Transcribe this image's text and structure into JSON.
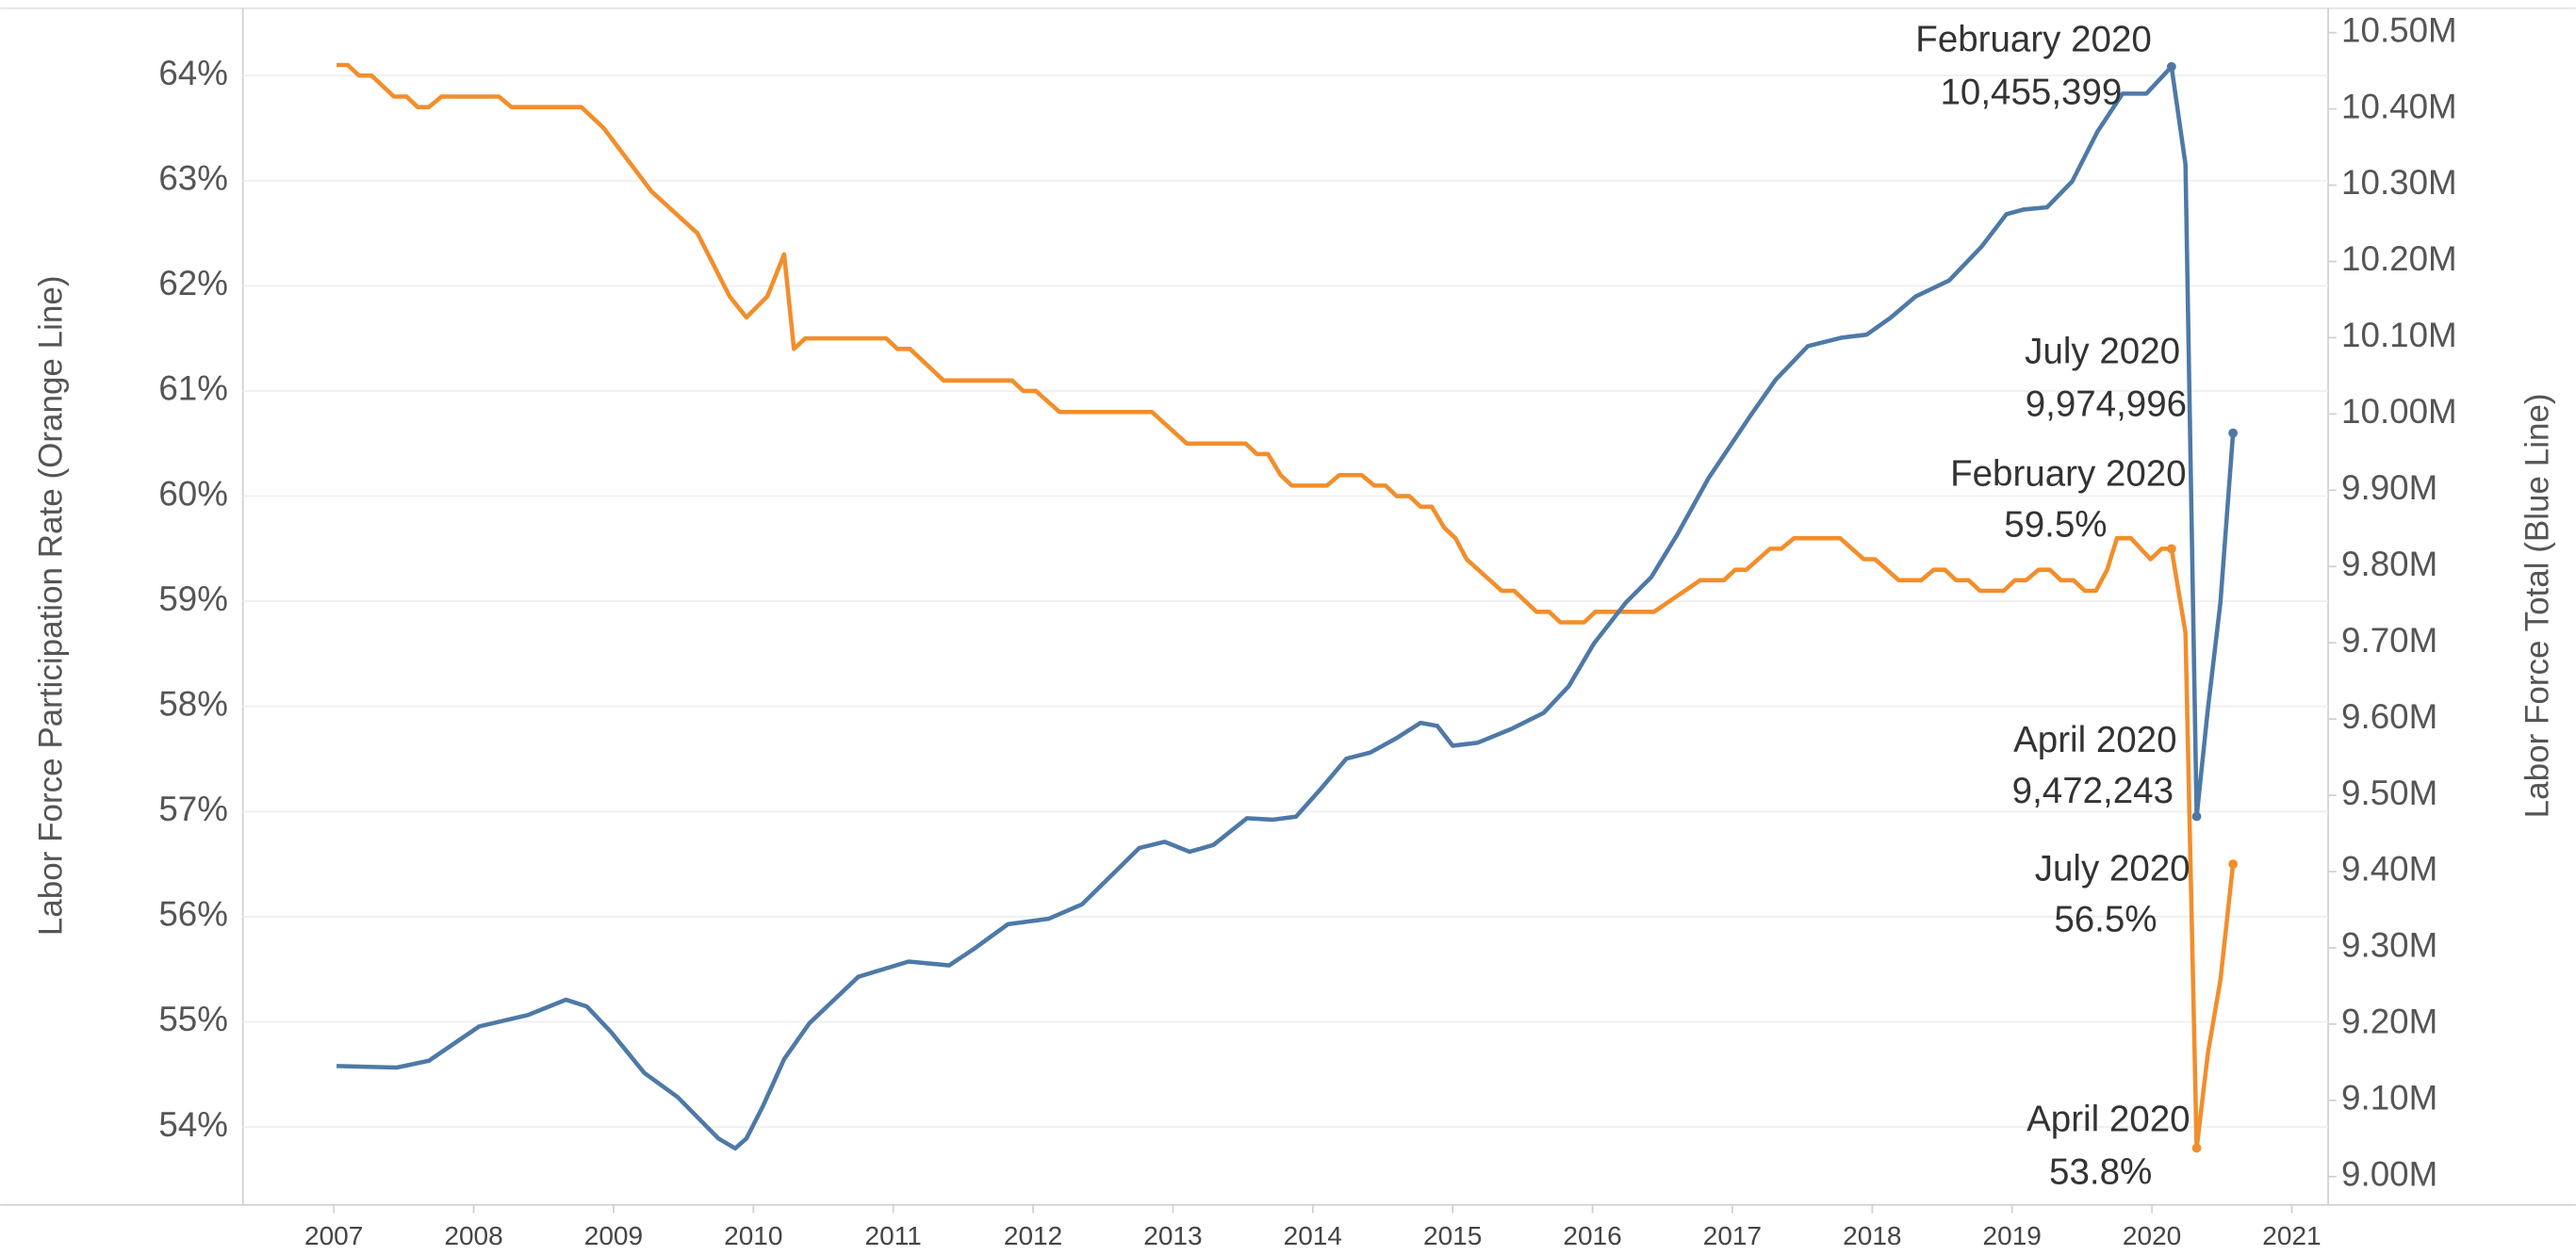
{
  "chart_data": {
    "type": "line",
    "ylabel": "Labor Force Participation Rate (Orange Line)",
    "y2label": "Labor Force Total (Blue Line)",
    "xlim": [
      2006.35,
      2021.26
    ],
    "xticks": [
      2007,
      2008,
      2009,
      2010,
      2011,
      2012,
      2013,
      2014,
      2015,
      2016,
      2017,
      2018,
      2019,
      2020,
      2021
    ],
    "ylim": [
      53.26,
      64.64
    ],
    "yticks": [
      {
        "value": 54,
        "label": "54%"
      },
      {
        "value": 55,
        "label": "55%"
      },
      {
        "value": 56,
        "label": "56%"
      },
      {
        "value": 57,
        "label": "57%"
      },
      {
        "value": 58,
        "label": "58%"
      },
      {
        "value": 59,
        "label": "59%"
      },
      {
        "value": 60,
        "label": "60%"
      },
      {
        "value": 61,
        "label": "61%"
      },
      {
        "value": 62,
        "label": "62%"
      },
      {
        "value": 63,
        "label": "63%"
      },
      {
        "value": 64,
        "label": "64%"
      }
    ],
    "y2lim": [
      8963000,
      10532000
    ],
    "y2ticks": [
      {
        "value": 9000000,
        "label": "9.00M"
      },
      {
        "value": 9100000,
        "label": "9.10M"
      },
      {
        "value": 9200000,
        "label": "9.20M"
      },
      {
        "value": 9300000,
        "label": "9.30M"
      },
      {
        "value": 9400000,
        "label": "9.40M"
      },
      {
        "value": 9500000,
        "label": "9.50M"
      },
      {
        "value": 9600000,
        "label": "9.60M"
      },
      {
        "value": 9700000,
        "label": "9.70M"
      },
      {
        "value": 9800000,
        "label": "9.80M"
      },
      {
        "value": 9900000,
        "label": "9.90M"
      },
      {
        "value": 10000000,
        "label": "10.00M"
      },
      {
        "value": 10100000,
        "label": "10.10M"
      },
      {
        "value": 10200000,
        "label": "10.20M"
      },
      {
        "value": 10300000,
        "label": "10.30M"
      },
      {
        "value": 10400000,
        "label": "10.40M"
      },
      {
        "value": 10500000,
        "label": "10.50M"
      }
    ],
    "grid": true,
    "series": [
      {
        "name": "Labor Force Participation Rate",
        "color": "#f28e2b",
        "axis": "y",
        "x": [
          2007.02,
          2007.1,
          2007.18,
          2007.27,
          2007.43,
          2007.52,
          2007.6,
          2007.68,
          2007.77,
          2008.18,
          2008.27,
          2008.77,
          2008.93,
          2009.1,
          2009.27,
          2009.6,
          2009.83,
          2009.95,
          2010.1,
          2010.22,
          2010.29,
          2010.37,
          2010.95,
          2011.03,
          2011.12,
          2011.36,
          2011.85,
          2011.93,
          2012.02,
          2012.19,
          2012.85,
          2013.1,
          2013.52,
          2013.6,
          2013.68,
          2013.77,
          2013.85,
          2014.1,
          2014.19,
          2014.35,
          2014.44,
          2014.52,
          2014.6,
          2014.69,
          2014.77,
          2014.85,
          2014.94,
          2015.02,
          2015.1,
          2015.35,
          2015.44,
          2015.6,
          2015.69,
          2015.77,
          2015.94,
          2016.02,
          2016.44,
          2016.77,
          2016.94,
          2017.02,
          2017.1,
          2017.27,
          2017.35,
          2017.44,
          2017.77,
          2017.94,
          2018.02,
          2018.19,
          2018.35,
          2018.44,
          2018.52,
          2018.6,
          2018.69,
          2018.77,
          2018.94,
          2019.02,
          2019.1,
          2019.19,
          2019.27,
          2019.35,
          2019.44,
          2019.52,
          2019.6,
          2019.68,
          2019.75,
          2019.85,
          2019.99,
          2020.07,
          2020.14,
          2020.24,
          2020.32,
          2020.4,
          2020.49,
          2020.58
        ],
        "values": [
          64.1,
          64.1,
          64.0,
          64.0,
          63.8,
          63.8,
          63.7,
          63.7,
          63.8,
          63.8,
          63.7,
          63.7,
          63.5,
          63.2,
          62.9,
          62.5,
          61.9,
          61.7,
          61.9,
          62.3,
          61.4,
          61.5,
          61.5,
          61.4,
          61.4,
          61.1,
          61.1,
          61.0,
          61.0,
          60.8,
          60.8,
          60.5,
          60.5,
          60.4,
          60.4,
          60.2,
          60.1,
          60.1,
          60.2,
          60.2,
          60.1,
          60.1,
          60.0,
          60.0,
          59.9,
          59.9,
          59.7,
          59.6,
          59.4,
          59.1,
          59.1,
          58.9,
          58.9,
          58.8,
          58.8,
          58.9,
          58.9,
          59.2,
          59.2,
          59.3,
          59.3,
          59.5,
          59.5,
          59.6,
          59.6,
          59.4,
          59.4,
          59.2,
          59.2,
          59.3,
          59.3,
          59.2,
          59.2,
          59.1,
          59.1,
          59.2,
          59.2,
          59.3,
          59.3,
          59.2,
          59.2,
          59.1,
          59.1,
          59.3,
          59.6,
          59.6,
          59.4,
          59.5,
          59.5,
          58.7,
          53.8,
          54.7,
          55.4,
          56.5
        ],
        "point_labels": [
          null,
          null,
          null,
          null,
          null,
          null,
          null,
          null,
          null,
          null,
          null,
          null,
          null,
          null,
          null,
          null,
          null,
          null,
          null,
          null,
          null,
          null,
          null,
          null,
          null,
          null,
          null,
          null,
          null,
          null,
          null,
          null,
          null,
          null,
          null,
          null,
          null,
          null,
          null,
          null,
          null,
          null,
          null,
          null,
          null,
          null,
          null,
          null,
          null,
          null,
          null,
          null,
          null,
          null,
          null,
          null,
          null,
          null,
          null,
          null,
          null,
          null,
          null,
          null,
          null,
          null,
          null,
          null,
          null,
          null,
          null,
          null,
          null,
          null,
          null,
          null,
          null,
          null,
          null,
          null,
          null,
          null,
          null,
          null,
          null,
          null,
          null,
          null,
          "February 2020",
          null,
          "April 2020",
          null,
          null,
          "July 2020"
        ],
        "value_labels": [
          null,
          null,
          null,
          null,
          null,
          null,
          null,
          null,
          null,
          null,
          null,
          null,
          null,
          null,
          null,
          null,
          null,
          null,
          null,
          null,
          null,
          null,
          null,
          null,
          null,
          null,
          null,
          null,
          null,
          null,
          null,
          null,
          null,
          null,
          null,
          null,
          null,
          null,
          null,
          null,
          null,
          null,
          null,
          null,
          null,
          null,
          null,
          null,
          null,
          null,
          null,
          null,
          null,
          null,
          null,
          null,
          null,
          null,
          null,
          null,
          null,
          null,
          null,
          null,
          null,
          null,
          null,
          null,
          null,
          null,
          null,
          null,
          null,
          null,
          null,
          null,
          null,
          null,
          null,
          null,
          null,
          null,
          null,
          null,
          null,
          null,
          null,
          null,
          "59.5%",
          null,
          "53.8%",
          null,
          null,
          "56.5%"
        ]
      },
      {
        "name": "Labor Force Total",
        "color": "#4e79a7",
        "axis": "y2",
        "x": [
          2007.02,
          2007.45,
          2007.68,
          2008.04,
          2008.39,
          2008.66,
          2008.81,
          2008.98,
          2009.22,
          2009.46,
          2009.75,
          2009.87,
          2009.95,
          2010.07,
          2010.22,
          2010.4,
          2010.75,
          2011.11,
          2011.4,
          2011.58,
          2011.82,
          2012.11,
          2012.35,
          2012.76,
          2012.94,
          2013.12,
          2013.29,
          2013.53,
          2013.71,
          2013.88,
          2014.06,
          2014.24,
          2014.41,
          2014.59,
          2014.77,
          2014.89,
          2015.0,
          2015.18,
          2015.42,
          2015.65,
          2015.83,
          2016.01,
          2016.24,
          2016.42,
          2016.6,
          2016.83,
          2017.13,
          2017.31,
          2017.54,
          2017.78,
          2017.96,
          2018.13,
          2018.31,
          2018.55,
          2018.78,
          2018.96,
          2019.08,
          2019.25,
          2019.43,
          2019.61,
          2019.79,
          2019.96,
          2020.14,
          2020.24,
          2020.32,
          2020.4,
          2020.49,
          2020.58
        ],
        "values": [
          9145000,
          9143000,
          9152000,
          9197000,
          9212000,
          9232000,
          9223000,
          9190000,
          9136000,
          9104000,
          9050000,
          9037000,
          9050000,
          9093000,
          9154000,
          9201000,
          9262000,
          9282000,
          9277000,
          9299000,
          9331000,
          9338000,
          9357000,
          9431000,
          9439000,
          9426000,
          9435000,
          9470000,
          9468000,
          9472000,
          9509000,
          9548000,
          9556000,
          9574000,
          9595000,
          9591000,
          9565000,
          9569000,
          9587000,
          9608000,
          9643000,
          9699000,
          9753000,
          9786000,
          9840000,
          9916000,
          9998000,
          10045000,
          10089000,
          10100000,
          10104000,
          10126000,
          10154000,
          10175000,
          10219000,
          10262000,
          10268000,
          10271000,
          10305000,
          10370000,
          10420000,
          10420000,
          10455399,
          10327000,
          9472243,
          9613000,
          9753000,
          9974996
        ],
        "point_labels": [
          null,
          null,
          null,
          null,
          null,
          null,
          null,
          null,
          null,
          null,
          null,
          null,
          null,
          null,
          null,
          null,
          null,
          null,
          null,
          null,
          null,
          null,
          null,
          null,
          null,
          null,
          null,
          null,
          null,
          null,
          null,
          null,
          null,
          null,
          null,
          null,
          null,
          null,
          null,
          null,
          null,
          null,
          null,
          null,
          null,
          null,
          null,
          null,
          null,
          null,
          null,
          null,
          null,
          null,
          null,
          null,
          null,
          null,
          null,
          null,
          null,
          null,
          "February 2020",
          null,
          "April 2020",
          null,
          null,
          "July 2020"
        ],
        "value_labels": [
          null,
          null,
          null,
          null,
          null,
          null,
          null,
          null,
          null,
          null,
          null,
          null,
          null,
          null,
          null,
          null,
          null,
          null,
          null,
          null,
          null,
          null,
          null,
          null,
          null,
          null,
          null,
          null,
          null,
          null,
          null,
          null,
          null,
          null,
          null,
          null,
          null,
          null,
          null,
          null,
          null,
          null,
          null,
          null,
          null,
          null,
          null,
          null,
          null,
          null,
          null,
          null,
          null,
          null,
          null,
          null,
          null,
          null,
          null,
          null,
          null,
          null,
          "10,455,399",
          null,
          "9,472,243",
          null,
          null,
          "9,974,996"
        ]
      }
    ]
  }
}
